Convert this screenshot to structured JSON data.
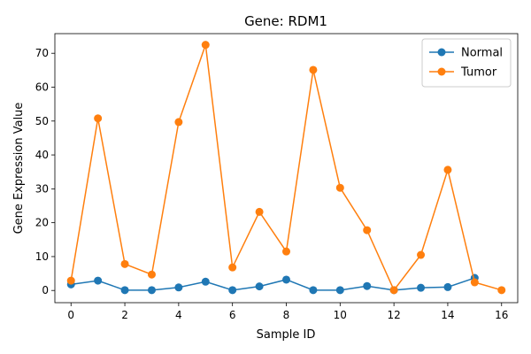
{
  "chart_data": {
    "type": "line",
    "title": "Gene: RDM1",
    "xlabel": "Sample ID",
    "ylabel": "Gene Expression Value",
    "xlim": [
      -0.6,
      16.6
    ],
    "ylim": [
      -3.6,
      75.8
    ],
    "xticks": [
      0,
      2,
      4,
      6,
      8,
      10,
      12,
      14,
      16
    ],
    "yticks": [
      0,
      10,
      20,
      30,
      40,
      50,
      60,
      70
    ],
    "grid": false,
    "legend_position": "top-right",
    "series": [
      {
        "name": "Normal",
        "color": "#1f77b4",
        "x": [
          0,
          1,
          2,
          3,
          4,
          5,
          6,
          7,
          8,
          9,
          10,
          11,
          12,
          13,
          14,
          15
        ],
        "y": [
          1.8,
          2.9,
          0.1,
          0.1,
          0.9,
          2.6,
          0.1,
          1.2,
          3.2,
          0.1,
          0.1,
          1.3,
          0.1,
          0.8,
          1.0,
          3.7
        ]
      },
      {
        "name": "Tumor",
        "color": "#ff7f0e",
        "x": [
          0,
          1,
          2,
          3,
          4,
          5,
          6,
          7,
          8,
          9,
          10,
          11,
          12,
          13,
          14,
          15,
          16
        ],
        "y": [
          2.9,
          50.8,
          7.8,
          4.7,
          49.7,
          72.5,
          6.8,
          23.2,
          11.5,
          65.1,
          30.3,
          17.8,
          0.1,
          10.5,
          35.6,
          2.4,
          0.1
        ]
      }
    ]
  }
}
